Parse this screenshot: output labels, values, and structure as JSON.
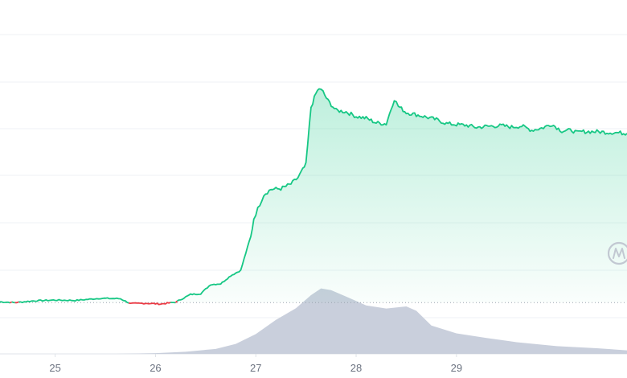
{
  "chart_data": {
    "type": "area",
    "title": "",
    "xlabel": "",
    "ylabel": "",
    "grid": true,
    "legend": "none",
    "x_ticks": [
      "25",
      "26",
      "27",
      "28",
      "29"
    ],
    "xlim": [
      24.45,
      30.7
    ],
    "ylim": [
      0,
      100
    ],
    "baseline": 14.5,
    "series": [
      {
        "values_x": [
          24.45,
          24.6,
          24.8,
          25.0,
          25.2,
          25.45,
          25.65,
          25.75,
          25.9,
          26.05,
          26.2,
          26.35,
          26.45,
          26.55,
          26.65,
          26.75,
          26.85,
          26.9,
          26.95,
          26.98,
          27.02,
          27.08,
          27.15,
          27.25,
          27.35,
          27.42,
          27.5,
          27.55,
          27.6,
          27.63,
          27.67,
          27.72,
          27.8,
          27.9,
          28.0,
          28.1,
          28.2,
          28.3,
          28.38,
          28.42,
          28.5,
          28.6,
          28.7,
          28.8,
          28.9,
          29.0,
          29.1,
          29.2,
          29.3,
          29.45,
          29.55,
          29.65,
          29.75,
          29.85,
          29.95,
          30.05,
          30.15,
          30.2,
          30.25,
          30.4,
          30.5,
          30.6,
          30.7
        ],
        "values_y": [
          14.7,
          14.5,
          15.0,
          15.2,
          15.1,
          15.7,
          15.6,
          14.2,
          14.3,
          14.1,
          14.6,
          16.8,
          17.0,
          19.6,
          19.8,
          22.1,
          23.6,
          28.5,
          33.0,
          38.2,
          41.0,
          45.0,
          46.5,
          46.7,
          48.0,
          49.8,
          53.5,
          69.7,
          73.6,
          75.0,
          74.0,
          71.5,
          68.8,
          68.4,
          67.1,
          66.6,
          65.3,
          65.0,
          72.0,
          70.0,
          68.2,
          67.6,
          66.9,
          66.2,
          65.1,
          64.8,
          64.6,
          64.0,
          64.3,
          64.5,
          64.1,
          64.4,
          63.2,
          63.8,
          64.9,
          63.0,
          63.2,
          62.5,
          62.8,
          62.8,
          62.6,
          62.5,
          62.3
        ],
        "color": "#16c784"
      },
      {
        "name": "volume",
        "values_x": [
          24.45,
          25.0,
          25.6,
          26.0,
          26.3,
          26.6,
          26.8,
          27.0,
          27.2,
          27.4,
          27.55,
          27.65,
          27.75,
          27.9,
          28.1,
          28.3,
          28.5,
          28.6,
          28.75,
          29.0,
          29.3,
          29.6,
          30.0,
          30.4,
          30.7
        ],
        "values_y": [
          0,
          0,
          0,
          0.2,
          0.6,
          1.4,
          2.8,
          5.6,
          9.6,
          12.9,
          16.6,
          18.5,
          18.0,
          16.2,
          13.7,
          12.8,
          13.4,
          12.2,
          8.0,
          5.8,
          4.5,
          3.3,
          2.2,
          1.6,
          1.0
        ],
        "color": "#c9cfdc"
      }
    ]
  },
  "colors": {
    "price_line": "#16c784",
    "price_line_red": "#ea3943",
    "volume_fill": "#c9cfdc",
    "grid": "#eff2f5",
    "baseline_dots": "#9aa3af",
    "tick_text": "#6b7280"
  },
  "watermark": {
    "icon": "m-logo-icon"
  }
}
